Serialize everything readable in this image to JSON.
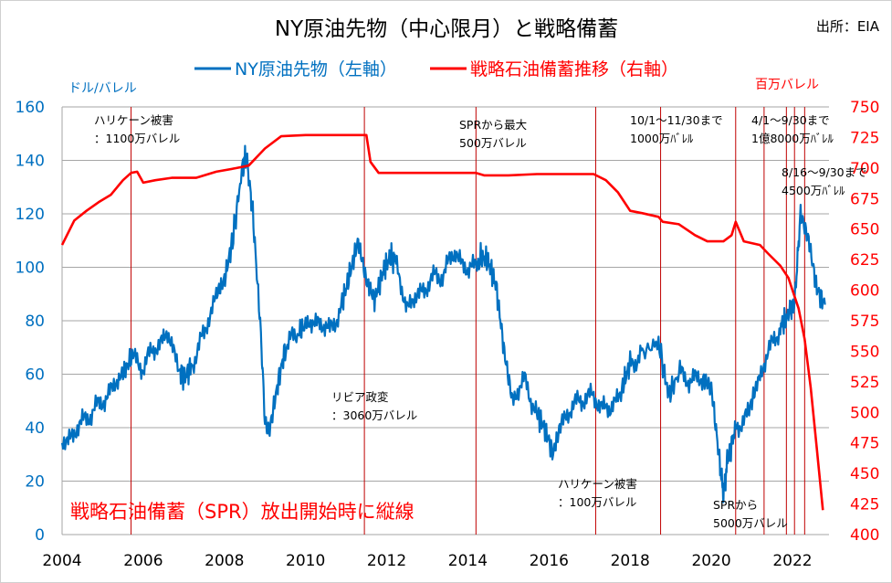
{
  "title": "NY原油先物（中心限月）と戦略備蓄",
  "source": "出所：EIA",
  "colors": {
    "oil": "#0070c0",
    "spr": "#ff0000",
    "grid": "#a6a6a6",
    "vline": "#c00000"
  },
  "chart_data": {
    "type": "line",
    "title": "NY原油先物（中心限月）と戦略備蓄",
    "xlim": [
      2004,
      2022.9
    ],
    "x_ticks": [
      "2004",
      "2006",
      "2008",
      "2010",
      "2012",
      "2014",
      "2016",
      "2018",
      "2020",
      "2022"
    ],
    "left_axis": {
      "unit_label": "ドル/バレル",
      "ylim": [
        0,
        160
      ],
      "ticks": [
        "0",
        "20",
        "40",
        "60",
        "80",
        "100",
        "120",
        "140",
        "160"
      ]
    },
    "right_axis": {
      "unit_label": "百万バレル",
      "ylim": [
        400,
        750
      ],
      "ticks": [
        "400",
        "425",
        "450",
        "475",
        "500",
        "525",
        "550",
        "575",
        "600",
        "625",
        "650",
        "675",
        "700",
        "725",
        "750"
      ]
    },
    "grid": true,
    "legend_position": "top",
    "series": [
      {
        "name": "NY原油先物（左軸）",
        "axis": "left",
        "color": "#0070c0",
        "x": [
          2004.0,
          2004.3,
          2004.6,
          2004.9,
          2005.2,
          2005.5,
          2005.7,
          2006.0,
          2006.3,
          2006.6,
          2006.9,
          2007.0,
          2007.2,
          2007.5,
          2007.8,
          2008.0,
          2008.2,
          2008.45,
          2008.55,
          2008.7,
          2008.9,
          2009.0,
          2009.1,
          2009.3,
          2009.5,
          2009.8,
          2010.0,
          2010.3,
          2010.6,
          2010.9,
          2011.1,
          2011.3,
          2011.5,
          2011.7,
          2011.9,
          2012.1,
          2012.2,
          2012.5,
          2012.8,
          2013.1,
          2013.4,
          2013.7,
          2014.0,
          2014.3,
          2014.5,
          2014.7,
          2014.9,
          2015.1,
          2015.4,
          2015.7,
          2015.9,
          2016.1,
          2016.3,
          2016.6,
          2016.9,
          2017.2,
          2017.5,
          2017.8,
          2018.0,
          2018.3,
          2018.7,
          2018.95,
          2019.2,
          2019.5,
          2019.8,
          2020.0,
          2020.2,
          2020.3,
          2020.4,
          2020.6,
          2020.9,
          2021.1,
          2021.4,
          2021.7,
          2021.9,
          2022.05,
          2022.2,
          2022.4,
          2022.6,
          2022.8
        ],
        "values": [
          34,
          38,
          44,
          48,
          54,
          60,
          66,
          63,
          70,
          75,
          62,
          58,
          64,
          75,
          90,
          95,
          110,
          138,
          142,
          120,
          75,
          42,
          38,
          55,
          70,
          75,
          78,
          80,
          76,
          86,
          98,
          110,
          95,
          88,
          98,
          104,
          102,
          85,
          90,
          95,
          98,
          106,
          98,
          104,
          102,
          93,
          68,
          50,
          58,
          45,
          40,
          30,
          42,
          48,
          52,
          50,
          46,
          55,
          64,
          68,
          72,
          52,
          60,
          58,
          58,
          55,
          28,
          15,
          28,
          40,
          45,
          55,
          68,
          78,
          82,
          88,
          120,
          110,
          92,
          86
        ]
      },
      {
        "name": "戦略石油備蓄推移（右軸）",
        "axis": "right",
        "color": "#ff0000",
        "x": [
          2004.0,
          2004.3,
          2004.6,
          2004.9,
          2005.2,
          2005.5,
          2005.7,
          2005.85,
          2006.0,
          2006.3,
          2006.7,
          2007.3,
          2007.8,
          2008.3,
          2008.6,
          2009.0,
          2009.4,
          2010.0,
          2011.0,
          2011.5,
          2011.6,
          2011.8,
          2012.5,
          2013.5,
          2014.2,
          2014.4,
          2015.0,
          2015.7,
          2016.2,
          2016.8,
          2017.1,
          2017.4,
          2017.7,
          2018.0,
          2018.3,
          2018.7,
          2018.8,
          2019.2,
          2019.6,
          2019.9,
          2020.3,
          2020.5,
          2020.6,
          2020.8,
          2021.2,
          2021.4,
          2021.7,
          2021.9,
          2022.0,
          2022.15,
          2022.3,
          2022.45,
          2022.6,
          2022.75
        ],
        "values": [
          637,
          657,
          665,
          672,
          678,
          690,
          696,
          697,
          688,
          690,
          692,
          692,
          697,
          700,
          702,
          716,
          726,
          727,
          727,
          727,
          705,
          696,
          696,
          696,
          696,
          694,
          694,
          695,
          695,
          695,
          695,
          690,
          680,
          665,
          663,
          660,
          656,
          654,
          645,
          640,
          640,
          645,
          656,
          640,
          637,
          630,
          620,
          610,
          600,
          585,
          560,
          520,
          470,
          420
        ]
      }
    ],
    "annotations": [
      {
        "lines": [
          "ハリケーン被害",
          "：1100万バレル"
        ]
      },
      {
        "lines": [
          "リビア政変",
          "：3060万バレル"
        ]
      },
      {
        "lines": [
          "SPRから最大",
          "500万バレル"
        ]
      },
      {
        "lines": [
          "ハリケーン被害",
          "：100万バレル"
        ]
      },
      {
        "lines": [
          "10/1～11/30まで",
          "1000万ﾊﾞﾚﾙ"
        ]
      },
      {
        "lines": [
          "4/1～9/30まで",
          "1億8000万ﾊﾞﾚﾙ"
        ]
      },
      {
        "lines": [
          "8/16～9/30まで",
          "4500万ﾊﾞﾚﾙ"
        ]
      },
      {
        "lines": [
          "SPRから",
          "5000万バレル"
        ]
      }
    ],
    "note": "戦略石油備蓄（SPR）放出開始時に縦線",
    "vertical_lines_x": [
      2005.7,
      2011.45,
      2014.2,
      2017.15,
      2018.75,
      2020.6,
      2021.3,
      2021.85,
      2022.05,
      2022.3
    ]
  }
}
